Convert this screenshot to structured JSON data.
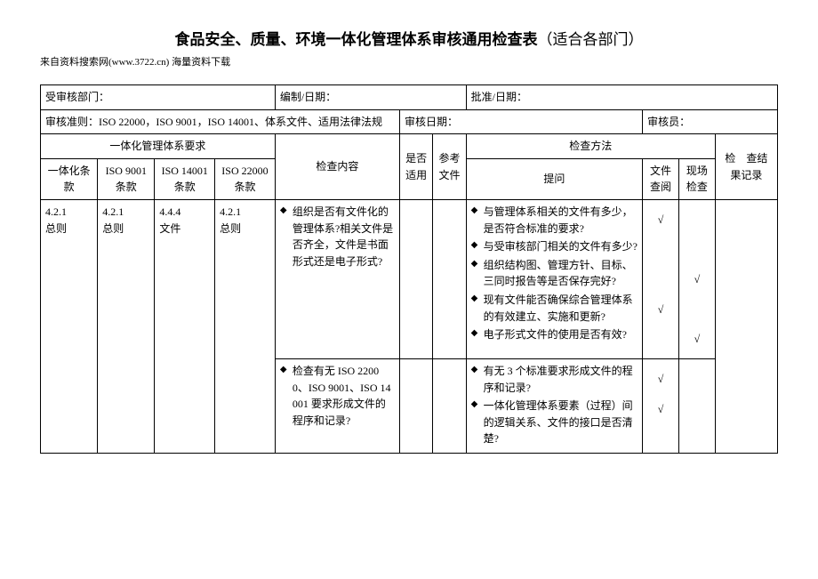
{
  "title_main": "食品安全、质量、环境一体化管理体系审核通用检查表",
  "title_sub": "（适合各部门）",
  "source": "来自资料搜索网(www.3722.cn) 海量资料下载",
  "hdr": {
    "dept": "受审核部门：",
    "compile": "编制/日期：",
    "approve": "批准/日期：",
    "criteria": "审核准则：ISO 22000，ISO 9001，ISO 14001、体系文件、适用法律法规",
    "audit_date": "审核日期：",
    "auditor": "审核员："
  },
  "cols": {
    "req_group": "一体化管理体系要求",
    "c1": "一体化条款",
    "c2": "ISO 9001条款",
    "c3": "ISO 14001条款",
    "c4": "ISO 22000条款",
    "content": "检查内容",
    "applicable": "是否适用",
    "ref": "参考文件",
    "method_group": "检查方法",
    "m1": "提问",
    "m2": "文件查阅",
    "m3": "现场检查",
    "result": "检　查结果记录"
  },
  "row1": {
    "c1": "4.2.1\n总则",
    "c2": "4.2.1\n总则",
    "c3": "4.4.4\n文件",
    "c4": "4.2.1\n总则",
    "content": "组织是否有文件化的管理体系?相关文件是否齐全，文件是书面形式还是电子形式?",
    "q": [
      "与管理体系相关的文件有多少，是否符合标准的要求?",
      "与受审核部门相关的文件有多少?",
      "组织结构图、管理方针、目标、三同时报告等是否保存完好?",
      "现有文件能否确保综合管理体系的有效建立、实施和更新?",
      "电子形式文件的使用是否有效?"
    ],
    "docs": [
      "√",
      "",
      "",
      "√",
      ""
    ],
    "site": [
      "",
      "",
      "√",
      "",
      "√"
    ]
  },
  "row2": {
    "content": "检查有无 ISO 22000、ISO 9001、ISO 14001 要求形成文件的程序和记录?",
    "q": [
      "有无 3 个标准要求形成文件的程序和记录?",
      "一体化管理体系要素（过程）间的逻辑关系、文件的接口是否清楚?"
    ],
    "docs": [
      "√",
      "√"
    ],
    "site": [
      "",
      ""
    ]
  }
}
